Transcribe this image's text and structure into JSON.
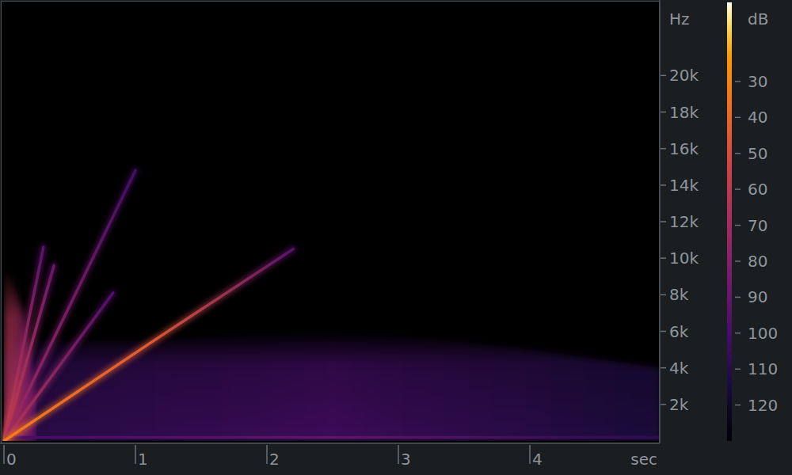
{
  "chart_data": {
    "type": "spectrogram",
    "x_label": "sec",
    "y_label": "Hz",
    "xlim": [
      0,
      5
    ],
    "xticks": [
      0,
      1,
      2,
      3,
      4
    ],
    "ylim": [
      0,
      24000
    ],
    "yticks": [
      {
        "value": 2000,
        "label": "2k"
      },
      {
        "value": 4000,
        "label": "4k"
      },
      {
        "value": 6000,
        "label": "6k"
      },
      {
        "value": 8000,
        "label": "8k"
      },
      {
        "value": 10000,
        "label": "10k"
      },
      {
        "value": 12000,
        "label": "12k"
      },
      {
        "value": 14000,
        "label": "14k"
      },
      {
        "value": 16000,
        "label": "16k"
      },
      {
        "value": 18000,
        "label": "18k"
      },
      {
        "value": 20000,
        "label": "20k"
      }
    ],
    "colorbar_label": "dB",
    "colorbar_range": [
      8,
      130
    ],
    "colorbar_ticks": [
      30,
      40,
      50,
      60,
      70,
      80,
      90,
      100,
      110,
      120
    ],
    "grid": false,
    "series": [
      {
        "type": "area",
        "x": [
          0,
          0.3,
          1,
          2,
          2.5,
          3,
          4,
          5
        ],
        "values": [
          6000,
          5500,
          5500,
          6000,
          6000,
          5800,
          5000,
          4000
        ],
        "levels": [
          112,
          108,
          105,
          102,
          100,
          103,
          108,
          113
        ]
      },
      {
        "type": "area",
        "x": [
          0,
          0.05,
          0.15,
          0.25
        ],
        "values": [
          9500,
          9000,
          7000,
          2000
        ],
        "levels": [
          60,
          62,
          75,
          95
        ]
      },
      {
        "type": "line",
        "x": [
          0,
          2.5,
          5
        ],
        "values": [
          200,
          200,
          200
        ],
        "levels": [
          100,
          92,
          108
        ]
      },
      {
        "type": "line",
        "x": [
          0,
          0.3
        ],
        "values": [
          0,
          10600
        ],
        "levels": [
          55,
          95
        ]
      },
      {
        "type": "line",
        "x": [
          0,
          0.38
        ],
        "values": [
          0,
          9600
        ],
        "levels": [
          55,
          90
        ]
      },
      {
        "type": "line",
        "x": [
          0,
          0.83
        ],
        "values": [
          0,
          8100
        ],
        "levels": [
          62,
          98
        ]
      },
      {
        "type": "line",
        "x": [
          0,
          1.0
        ],
        "values": [
          0,
          14800
        ],
        "levels": [
          70,
          102
        ]
      },
      {
        "type": "line",
        "x": [
          0,
          1.1,
          2.2
        ],
        "values": [
          0,
          5300,
          10500
        ],
        "levels": [
          32,
          45,
          95
        ]
      }
    ]
  }
}
